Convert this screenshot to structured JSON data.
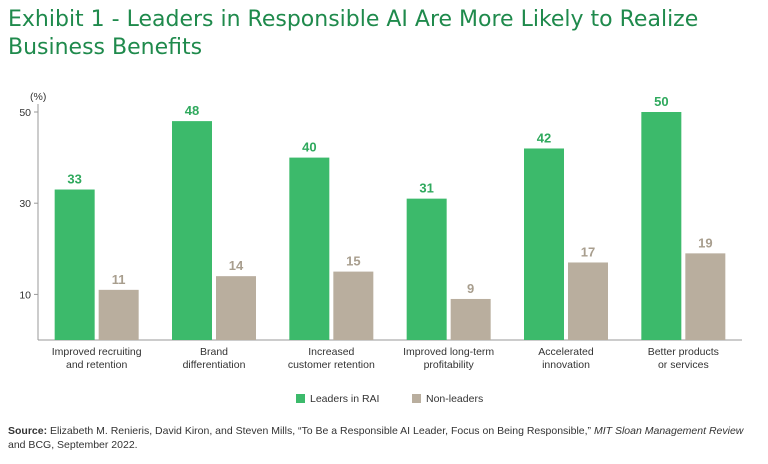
{
  "title_line1": "Exhibit 1 - Leaders in Responsible AI Are More Likely to Realize",
  "title_line2": "Business Benefits",
  "colors": {
    "leaders": "#3cba6b",
    "nonleaders": "#b9ae9e",
    "title": "#1f8a4c",
    "leaderLabel": "#2fa95d",
    "nonleaderLabel": "#a89e8e"
  },
  "chart_data": {
    "type": "bar",
    "ylabel": "(%)",
    "ylim": [
      0,
      50
    ],
    "yticks": [
      10,
      30,
      50
    ],
    "categories": [
      [
        "Improved recruiting",
        "and retention"
      ],
      [
        "Brand",
        "differentiation"
      ],
      [
        "Increased",
        "customer retention"
      ],
      [
        "Improved long-term",
        "profitability"
      ],
      [
        "Accelerated",
        "innovation"
      ],
      [
        "Better products",
        "or services"
      ]
    ],
    "series": [
      {
        "name": "Leaders in RAI",
        "values": [
          33,
          48,
          40,
          31,
          42,
          50
        ]
      },
      {
        "name": "Non-leaders",
        "values": [
          11,
          14,
          15,
          9,
          17,
          19
        ]
      }
    ]
  },
  "source": {
    "label": "Source:",
    "text1": " Elizabeth M. Renieris, David Kiron, and Steven Mills, “To Be a Responsible AI Leader, Focus on Being Responsible,” ",
    "journal": "MIT Sloan Management Review",
    "text2": " and BCG, September 2022."
  }
}
